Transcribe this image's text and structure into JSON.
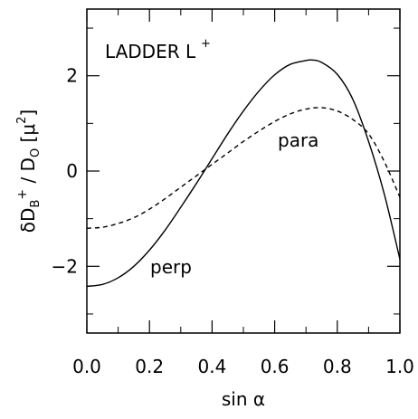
{
  "chart_data": {
    "type": "line",
    "title": "",
    "xlabel": "sin α",
    "ylabel": {
      "parts": [
        "δD",
        "B",
        "+",
        " / D",
        "O",
        " [μ",
        "2",
        "]"
      ]
    },
    "xlim": [
      0.0,
      1.0
    ],
    "ylim": [
      -3.4,
      3.4
    ],
    "xticks": [
      "0.0",
      "0.2",
      "0.4",
      "0.6",
      "0.8",
      "1.0"
    ],
    "yticks": [
      "−2",
      "0",
      "2"
    ],
    "annotations": {
      "ladder": "LADDER L",
      "ladder_sup": "+",
      "para": "para",
      "perp": "perp"
    },
    "series": [
      {
        "name": "perp",
        "style": "solid",
        "x": [
          0.0,
          0.05,
          0.1,
          0.15,
          0.2,
          0.25,
          0.3,
          0.35,
          0.4,
          0.45,
          0.5,
          0.55,
          0.6,
          0.65,
          0.7,
          0.72,
          0.75,
          0.8,
          0.85,
          0.9,
          0.95,
          1.0
        ],
        "values": [
          -2.42,
          -2.38,
          -2.24,
          -2.0,
          -1.66,
          -1.24,
          -0.76,
          -0.26,
          0.26,
          0.78,
          1.26,
          1.68,
          2.02,
          2.24,
          2.32,
          2.33,
          2.28,
          2.03,
          1.5,
          0.62,
          -0.48,
          -1.85
        ]
      },
      {
        "name": "para",
        "style": "dashed",
        "x": [
          0.0,
          0.05,
          0.1,
          0.15,
          0.2,
          0.25,
          0.3,
          0.35,
          0.4,
          0.45,
          0.5,
          0.55,
          0.6,
          0.65,
          0.7,
          0.75,
          0.8,
          0.85,
          0.9,
          0.95,
          1.0
        ],
        "values": [
          -1.2,
          -1.18,
          -1.1,
          -0.98,
          -0.8,
          -0.58,
          -0.34,
          -0.1,
          0.14,
          0.38,
          0.62,
          0.84,
          1.04,
          1.2,
          1.3,
          1.33,
          1.26,
          1.08,
          0.78,
          0.2,
          -0.55
        ]
      }
    ],
    "colors": {
      "line": "#000000",
      "background": "#ffffff"
    }
  }
}
